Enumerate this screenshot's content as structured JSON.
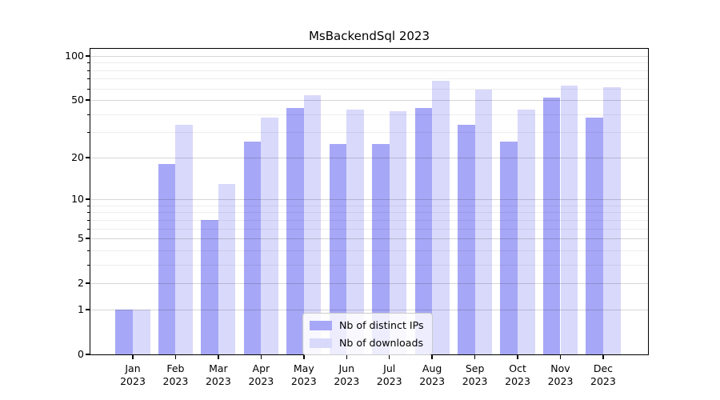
{
  "chart_data": {
    "type": "bar",
    "title": "MsBackendSql 2023",
    "categories": [
      "Jan",
      "Feb",
      "Mar",
      "Apr",
      "May",
      "Jun",
      "Jul",
      "Aug",
      "Sep",
      "Oct",
      "Nov",
      "Dec"
    ],
    "year_label": "2023",
    "series": [
      {
        "name": "Nb of distinct IPs",
        "color": "#a7a7f7",
        "values": [
          1,
          18,
          7,
          26,
          44,
          25,
          25,
          44,
          34,
          26,
          52,
          38
        ]
      },
      {
        "name": "Nb of downloads",
        "color": "#d9d9fb",
        "values": [
          1,
          34,
          13,
          38,
          54,
          43,
          42,
          68,
          59,
          43,
          63,
          61
        ]
      }
    ],
    "y_axis": {
      "scale": "log10(x+1)",
      "major_ticks": [
        0,
        1,
        2,
        5,
        10,
        20,
        50,
        100
      ],
      "minor_gridlines": [
        3,
        4,
        6,
        7,
        8,
        9,
        30,
        40,
        60,
        70,
        80,
        90
      ],
      "ylim": [
        0,
        112
      ]
    },
    "xlabel": "",
    "ylabel": "",
    "grid": true,
    "legend_position": "bottom-center",
    "colors": {
      "bar_dark": "#a7a7f7",
      "bar_light": "#d9d9fb",
      "spine": "#000000",
      "legend_border": "#cccccc"
    }
  }
}
